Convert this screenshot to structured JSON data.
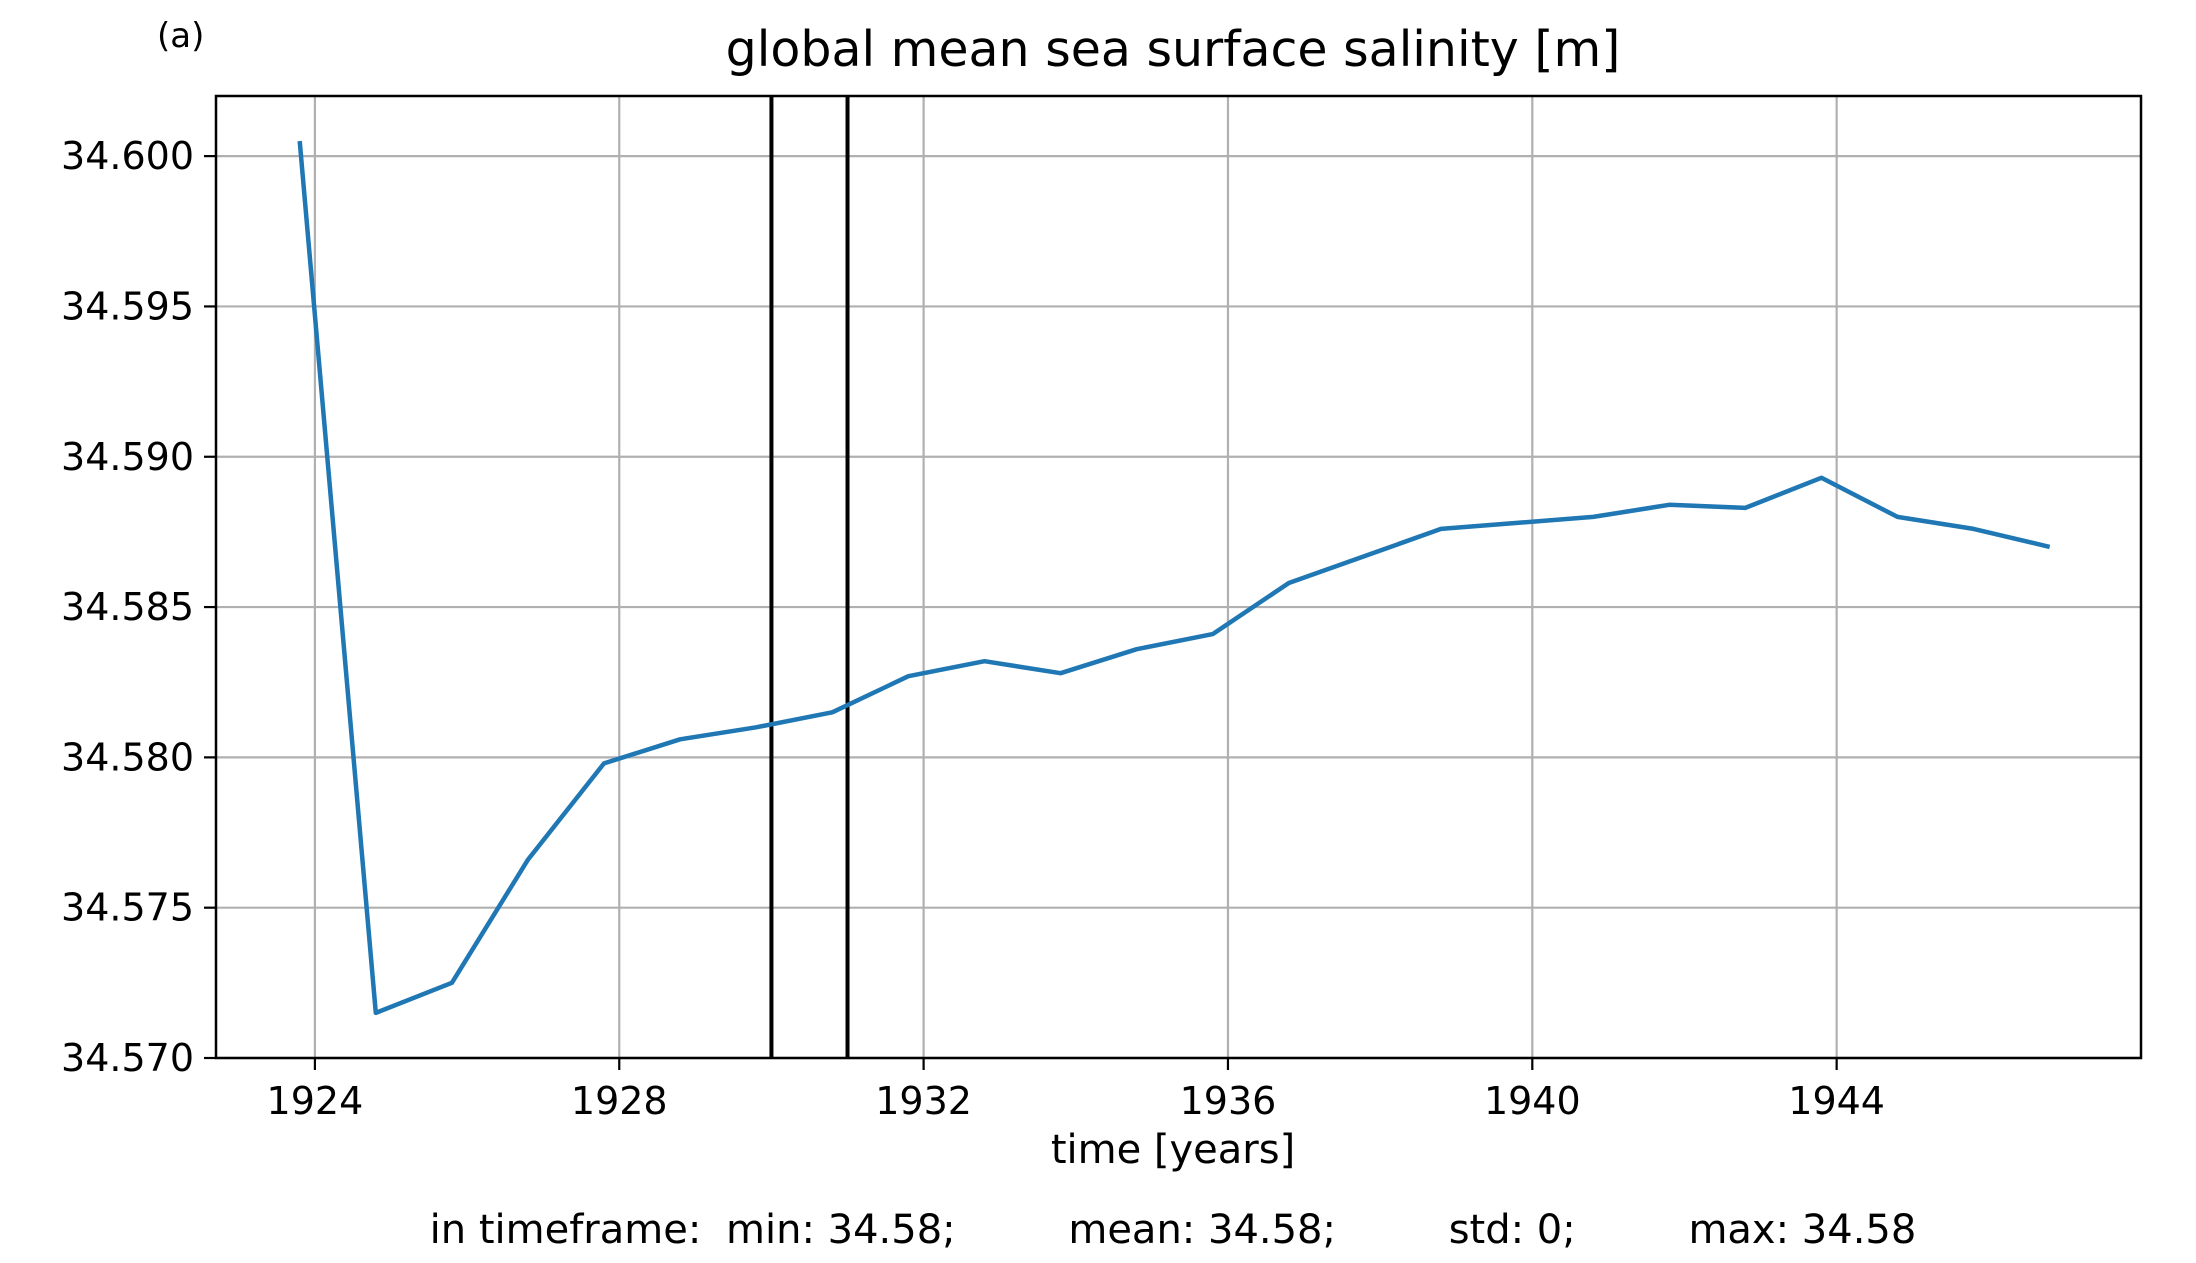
{
  "panel_label": "(a)",
  "chart_data": {
    "type": "line",
    "title": "global mean sea surface salinity [m]",
    "xlabel": "time [years]",
    "ylabel": "",
    "xlim": [
      1922.7,
      1948.0
    ],
    "ylim": [
      34.57,
      34.602
    ],
    "x_ticks": [
      1924,
      1928,
      1932,
      1936,
      1940,
      1944
    ],
    "x_tick_labels": [
      "1924",
      "1928",
      "1932",
      "1936",
      "1940",
      "1944"
    ],
    "y_ticks": [
      34.57,
      34.575,
      34.58,
      34.585,
      34.59,
      34.595,
      34.6
    ],
    "y_tick_labels": [
      "34.570",
      "34.575",
      "34.580",
      "34.585",
      "34.590",
      "34.595",
      "34.600"
    ],
    "grid": true,
    "series": [
      {
        "color": "#1f77b4",
        "x": [
          1923.8,
          1924.8,
          1925.8,
          1926.8,
          1927.8,
          1928.8,
          1929.8,
          1930.8,
          1931.8,
          1932.8,
          1933.8,
          1934.8,
          1935.8,
          1936.8,
          1937.8,
          1938.8,
          1939.8,
          1940.8,
          1941.8,
          1942.8,
          1943.8,
          1944.8,
          1945.8,
          1946.8
        ],
        "y": [
          34.6005,
          34.5715,
          34.5725,
          34.5766,
          34.5798,
          34.5806,
          34.581,
          34.5815,
          34.5827,
          34.5832,
          34.5828,
          34.5836,
          34.5841,
          34.5858,
          34.5867,
          34.5876,
          34.5878,
          34.588,
          34.5884,
          34.5883,
          34.5893,
          34.588,
          34.5876,
          34.587
        ]
      }
    ],
    "vertical_lines": [
      {
        "x": 1930.0,
        "color": "#000000"
      },
      {
        "x": 1931.0,
        "color": "#000000"
      }
    ],
    "grid_color": "#b0b0b0"
  },
  "footer": {
    "prefix": "in timeframe:",
    "min": "min: 34.58;",
    "mean": "mean: 34.58;",
    "std": "std: 0;",
    "max": "max: 34.58"
  }
}
